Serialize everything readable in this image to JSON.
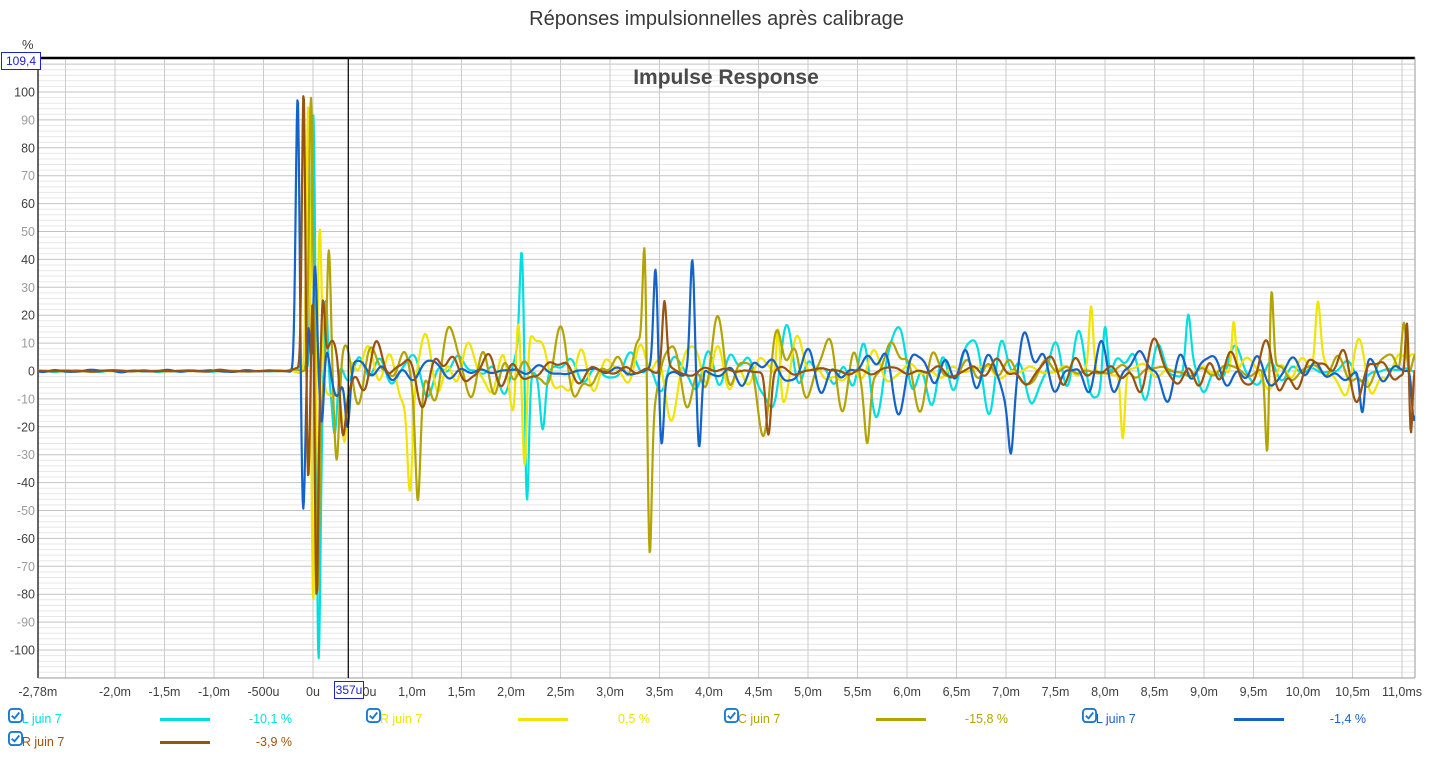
{
  "page": {
    "title": "Réponses impulsionnelles après calibrage"
  },
  "chart": {
    "subtitle": "Impulse Response",
    "y_unit": "%",
    "cursor": {
      "x_value": "357u",
      "y_value": "109,4",
      "t_ms": 0.357
    }
  },
  "chart_data": {
    "type": "line",
    "title": "Impulse Response",
    "x_unit": "ms",
    "y_unit": "%",
    "x_range_ms": [
      -2.78,
      11.131
    ],
    "y_range_pct": [
      -110,
      112.5
    ],
    "grid": {
      "minor_h": "#e7e7e7",
      "major_h": "#c4c4c4",
      "major_v": "#cbcbcb",
      "border_dark": "#000000",
      "border_light": "#9a9a9a"
    },
    "x_ticks": [
      {
        "t": -2.78,
        "label": "-2,78m"
      },
      {
        "t": -2.0,
        "label": "-2,0m"
      },
      {
        "t": -1.5,
        "label": "-1,5m"
      },
      {
        "t": -1.0,
        "label": "-1,0m"
      },
      {
        "t": -0.5,
        "label": "-500u"
      },
      {
        "t": 0.0,
        "label": "0u"
      },
      {
        "t": 0.5,
        "label": "500u"
      },
      {
        "t": 1.0,
        "label": "1,0m"
      },
      {
        "t": 1.5,
        "label": "1,5m"
      },
      {
        "t": 2.0,
        "label": "2,0m"
      },
      {
        "t": 2.5,
        "label": "2,5m"
      },
      {
        "t": 3.0,
        "label": "3,0m"
      },
      {
        "t": 3.5,
        "label": "3,5m"
      },
      {
        "t": 4.0,
        "label": "4,0m"
      },
      {
        "t": 4.5,
        "label": "4,5m"
      },
      {
        "t": 5.0,
        "label": "5,0m"
      },
      {
        "t": 5.5,
        "label": "5,5m"
      },
      {
        "t": 6.0,
        "label": "6,0m"
      },
      {
        "t": 6.5,
        "label": "6,5m"
      },
      {
        "t": 7.0,
        "label": "7,0m"
      },
      {
        "t": 7.5,
        "label": "7,5m"
      },
      {
        "t": 8.0,
        "label": "8,0m"
      },
      {
        "t": 8.5,
        "label": "8,5m"
      },
      {
        "t": 9.0,
        "label": "9,0m"
      },
      {
        "t": 9.5,
        "label": "9,5m"
      },
      {
        "t": 10.0,
        "label": "10,0m"
      },
      {
        "t": 10.5,
        "label": "10,5m"
      },
      {
        "t": 11.0,
        "label": "11,0ms"
      }
    ],
    "y_tick_min": -100,
    "y_tick_max": 100,
    "y_tick_step": 10,
    "y_dark_every": 20,
    "noise_freqs": [
      1.15,
      1.8,
      2.65,
      3.7,
      5.1
    ],
    "noise_amps": [
      0.35,
      0.5,
      0.6,
      0.5,
      0.35
    ],
    "series": [
      {
        "id": "3",
        "name": "3: L juin 7",
        "color": "#00dfe0",
        "distortion": "-10,1 %",
        "seed": 11,
        "envelope": [
          [
            -2.78,
            0.3
          ],
          [
            -0.25,
            0.3
          ],
          [
            -0.05,
            2
          ],
          [
            0.1,
            16
          ],
          [
            0.6,
            12
          ],
          [
            1.8,
            13
          ],
          [
            2.45,
            11
          ],
          [
            2.75,
            6
          ],
          [
            3.3,
            8
          ],
          [
            4.0,
            10
          ],
          [
            5.5,
            10
          ],
          [
            7.0,
            10
          ],
          [
            8.5,
            11
          ],
          [
            10,
            11
          ],
          [
            11.131,
            11
          ]
        ],
        "peaks": [
          [
            0.005,
            100,
            0.02
          ],
          [
            0.055,
            -98,
            0.02
          ],
          [
            0.13,
            32,
            0.018
          ],
          [
            0.22,
            -24,
            0.025
          ],
          [
            2.11,
            40,
            0.022
          ],
          [
            2.16,
            -50,
            0.02
          ],
          [
            2.32,
            -18,
            0.025
          ],
          [
            8.0,
            24,
            0.025
          ],
          [
            8.84,
            18,
            0.025
          ],
          [
            11.28,
            16,
            0.02
          ]
        ]
      },
      {
        "id": "4",
        "name": "4: R juin 7",
        "color": "#f0e400",
        "distortion": "0,5 %",
        "seed": 22,
        "envelope": [
          [
            -2.78,
            0.3
          ],
          [
            -0.3,
            0.3
          ],
          [
            -0.08,
            2
          ],
          [
            0.1,
            19
          ],
          [
            0.7,
            15
          ],
          [
            1.4,
            14
          ],
          [
            2.3,
            14
          ],
          [
            2.8,
            7
          ],
          [
            3.4,
            11
          ],
          [
            4.6,
            13
          ],
          [
            6.2,
            12
          ],
          [
            7.6,
            13
          ],
          [
            9.0,
            12
          ],
          [
            10.4,
            13
          ],
          [
            11.131,
            12
          ]
        ],
        "peaks": [
          [
            -0.045,
            100,
            0.02
          ],
          [
            0.0,
            -95,
            0.02
          ],
          [
            0.07,
            50,
            0.018
          ],
          [
            0.32,
            -26,
            0.025
          ],
          [
            0.98,
            -34,
            0.025
          ],
          [
            2.07,
            30,
            0.022
          ],
          [
            2.14,
            -42,
            0.022
          ],
          [
            4.7,
            22,
            0.018
          ],
          [
            7.86,
            22,
            0.02
          ],
          [
            8.18,
            -24,
            0.02
          ],
          [
            9.3,
            20,
            0.02
          ],
          [
            10.15,
            22,
            0.025
          ]
        ]
      },
      {
        "id": "5",
        "name": "5: C juin 7",
        "color": "#b2a403",
        "distortion": "-15,8 %",
        "seed": 33,
        "envelope": [
          [
            -2.78,
            0.3
          ],
          [
            -0.28,
            0.3
          ],
          [
            -0.06,
            2
          ],
          [
            0.12,
            20
          ],
          [
            0.8,
            15
          ],
          [
            1.6,
            13
          ],
          [
            2.6,
            8
          ],
          [
            3.1,
            8
          ],
          [
            4.3,
            14
          ],
          [
            5.8,
            14
          ],
          [
            7.5,
            13
          ],
          [
            9.2,
            13
          ],
          [
            10.5,
            14
          ],
          [
            11.131,
            13
          ]
        ],
        "peaks": [
          [
            -0.02,
            100,
            0.02
          ],
          [
            0.045,
            -73,
            0.02
          ],
          [
            0.16,
            44,
            0.02
          ],
          [
            0.24,
            -33,
            0.025
          ],
          [
            1.06,
            -38,
            0.025
          ],
          [
            3.35,
            46,
            0.02
          ],
          [
            3.4,
            -54,
            0.02
          ],
          [
            5.6,
            -18,
            0.025
          ],
          [
            9.64,
            -32,
            0.02
          ],
          [
            9.68,
            32,
            0.02
          ],
          [
            11.02,
            24,
            0.025
          ]
        ]
      },
      {
        "id": "6",
        "name": "6: L juin 7",
        "color": "#1463c8",
        "distortion": "-1,4 %",
        "seed": 44,
        "envelope": [
          [
            -2.78,
            0.3
          ],
          [
            -0.35,
            0.3
          ],
          [
            -0.18,
            1
          ],
          [
            0.12,
            15
          ],
          [
            0.5,
            12
          ],
          [
            1.5,
            11
          ],
          [
            2.4,
            9
          ],
          [
            2.8,
            7
          ],
          [
            3.3,
            11
          ],
          [
            4.3,
            12
          ],
          [
            5.5,
            11
          ],
          [
            7.0,
            12
          ],
          [
            8.5,
            11
          ],
          [
            10,
            12
          ],
          [
            11.131,
            12
          ]
        ],
        "peaks": [
          [
            -0.155,
            100,
            0.02
          ],
          [
            -0.1,
            -50,
            0.02
          ],
          [
            -0.045,
            18,
            0.015
          ],
          [
            0.02,
            38,
            0.018
          ],
          [
            0.09,
            -28,
            0.022
          ],
          [
            0.35,
            -22,
            0.025
          ],
          [
            3.46,
            36,
            0.022
          ],
          [
            3.52,
            -26,
            0.022
          ],
          [
            3.83,
            37,
            0.022
          ],
          [
            3.9,
            -31,
            0.022
          ],
          [
            7.05,
            -15,
            0.025
          ],
          [
            10.6,
            -17,
            0.025
          ],
          [
            11.12,
            -18,
            0.02
          ],
          [
            11.3,
            15,
            0.015
          ]
        ]
      },
      {
        "id": "7",
        "name": "7: R juin 7",
        "color": "#9a530e",
        "distortion": "-3,9 %",
        "seed": 55,
        "envelope": [
          [
            -2.78,
            0.25
          ],
          [
            -0.3,
            0.25
          ],
          [
            -0.12,
            1
          ],
          [
            0.1,
            13
          ],
          [
            0.5,
            9
          ],
          [
            1.5,
            8
          ],
          [
            2.7,
            6
          ],
          [
            3.5,
            8
          ],
          [
            5,
            8
          ],
          [
            6.5,
            9
          ],
          [
            8.5,
            8
          ],
          [
            10.5,
            8
          ],
          [
            11.131,
            9
          ]
        ],
        "peaks": [
          [
            -0.095,
            100,
            0.017
          ],
          [
            -0.05,
            -36,
            0.016
          ],
          [
            0.0,
            42,
            0.016
          ],
          [
            0.035,
            -78,
            0.018
          ],
          [
            0.1,
            24,
            0.018
          ],
          [
            0.3,
            -16,
            0.025
          ],
          [
            3.55,
            24,
            0.022
          ],
          [
            4.6,
            -22,
            0.025
          ],
          [
            11.05,
            20,
            0.016
          ],
          [
            11.09,
            -20,
            0.014
          ]
        ]
      }
    ]
  },
  "legend": {
    "checkbox_color": "#1878d2",
    "items": [
      {
        "name": "3: L juin 7",
        "color": "#00dfe0",
        "value": "-10,1 %",
        "checked": true,
        "row": 0,
        "col": 0
      },
      {
        "name": "4: R juin 7",
        "color": "#f0e400",
        "value": "0,5 %",
        "checked": true,
        "row": 0,
        "col": 1
      },
      {
        "name": "5: C juin 7",
        "color": "#b2a403",
        "value": "-15,8 %",
        "checked": true,
        "row": 0,
        "col": 2
      },
      {
        "name": "6: L juin 7",
        "color": "#1463c8",
        "value": "-1,4 %",
        "checked": true,
        "row": 0,
        "col": 3
      },
      {
        "name": "7: R juin 7",
        "color": "#9a530e",
        "value": "-3,9 %",
        "checked": true,
        "row": 1,
        "col": 0
      }
    ]
  }
}
